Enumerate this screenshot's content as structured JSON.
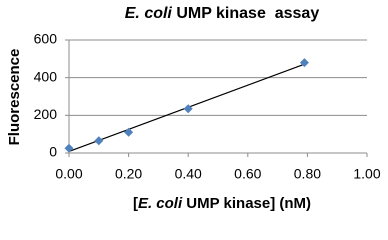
{
  "chart_data": {
    "type": "scatter",
    "title": [
      {
        "text": "E. coli",
        "italic": true
      },
      {
        "text": " UMP kinase  assay",
        "italic": false
      }
    ],
    "x_label": [
      {
        "text": "[",
        "italic": false
      },
      {
        "text": "E. coli",
        "italic": true
      },
      {
        "text": " UMP kinase] (nM)",
        "italic": false
      }
    ],
    "y_label": "Fluorescence",
    "x": [
      0,
      0.1,
      0.2,
      0.4,
      0.79
    ],
    "values": [
      25,
      65,
      110,
      235,
      480
    ],
    "color": "#4f81bd",
    "trendline": "linear",
    "xlim": [
      0,
      1
    ],
    "xticks": [
      {
        "value": 0,
        "label": "0.00"
      },
      {
        "value": 0.2,
        "label": "0.20"
      },
      {
        "value": 0.4,
        "label": "0.40"
      },
      {
        "value": 0.6,
        "label": "0.60"
      },
      {
        "value": 0.8,
        "label": "0.80"
      },
      {
        "value": 1,
        "label": "1.00"
      }
    ],
    "ylim": [
      0,
      600
    ],
    "yticks": [
      0,
      200,
      400,
      600
    ],
    "grid": true
  }
}
